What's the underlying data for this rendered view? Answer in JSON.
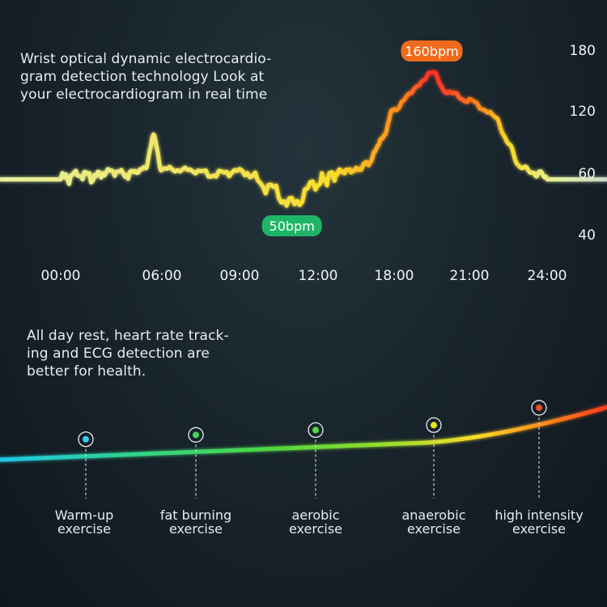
{
  "top_description": "Wrist optical dynamic electrocardio-\ngram detection technology Look at\nyour electrocardiogram in real time",
  "bottom_description": "All day rest, heart rate track-\ning and ECG detection are\nbetter for health.",
  "colors": {
    "background": "#18232b",
    "bubble_high": "#f06a1c",
    "bubble_low": "#1fb566",
    "curve_low": "#e6f2a0",
    "curve_mid": "#f8dc2a",
    "curve_high": "#ff2a2a",
    "zone_start": "#21c6e8",
    "zone_end": "#ff3a1c"
  },
  "chart_data": [
    {
      "type": "line",
      "title": "",
      "xlabel": "",
      "ylabel": "",
      "x_ticks": [
        "00:00",
        "06:00",
        "09:00",
        "12:00",
        "18:00",
        "21:00",
        "24:00"
      ],
      "y_ticks": [
        180,
        120,
        60,
        40
      ],
      "grid": false,
      "series": [
        {
          "points": [
            [
              0,
              58
            ],
            [
              1,
              60
            ],
            [
              2,
              59
            ],
            [
              3,
              62
            ],
            [
              4,
              60
            ],
            [
              5,
              64
            ],
            [
              5.5,
              95
            ],
            [
              6,
              64
            ],
            [
              7,
              63
            ],
            [
              8,
              60
            ],
            [
              9,
              62
            ],
            [
              10,
              56
            ],
            [
              11,
              50
            ],
            [
              12,
              57
            ],
            [
              13,
              59
            ],
            [
              14,
              62
            ],
            [
              15,
              63
            ],
            [
              16,
              70
            ],
            [
              17,
              92
            ],
            [
              18,
              122
            ],
            [
              19,
              145
            ],
            [
              19.5,
              160
            ],
            [
              20,
              140
            ],
            [
              21,
              130
            ],
            [
              22,
              115
            ],
            [
              22.5,
              88
            ],
            [
              23,
              65
            ],
            [
              23.5,
              61
            ],
            [
              24,
              58
            ]
          ]
        }
      ],
      "annotations": [
        {
          "label": "160bpm",
          "x": 19.5,
          "y": 160
        },
        {
          "label": "50bpm",
          "x": 11,
          "y": 50
        }
      ]
    },
    {
      "type": "line",
      "title": "",
      "categories": [
        "Warm-up\nexercise",
        "fat burning\nexercise",
        "aerobic\nexercise",
        "anaerobic\nexercise",
        "high intensity\nexercise"
      ],
      "series": [
        {
          "values": [
            1,
            2,
            3,
            4,
            5
          ]
        }
      ],
      "marker_colors": [
        "#3ec8ee",
        "#3fd65a",
        "#56d848",
        "#e8e21c",
        "#f04a2a"
      ]
    }
  ]
}
